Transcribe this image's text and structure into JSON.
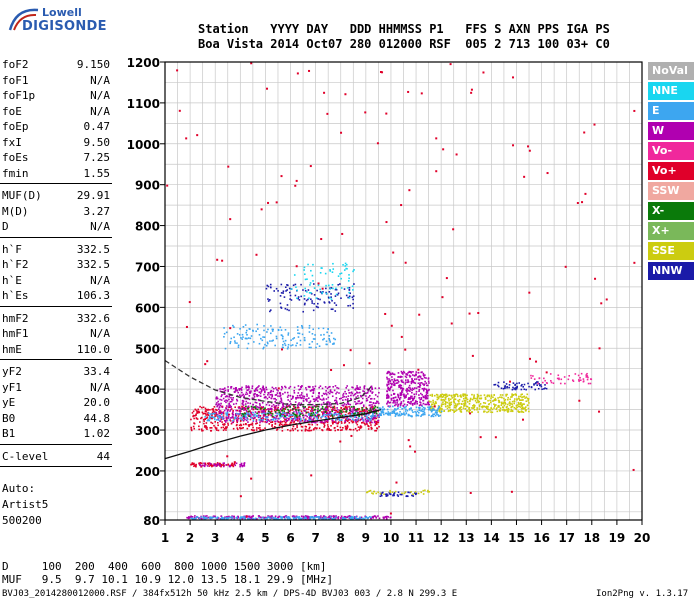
{
  "logo": {
    "line1": "Lowell",
    "line2": "DIGISONDE"
  },
  "header": {
    "row1": "Station   YYYY DAY   DDD HHMMSS P1   FFS S AXN PPS IGA PS",
    "row2": "Boa Vista 2014 Oct07 280 012000 RSF  005 2 713 100 03+ C0"
  },
  "params": [
    {
      "k": "foF2",
      "v": "9.150"
    },
    {
      "k": "foF1",
      "v": "N/A"
    },
    {
      "k": "foF1p",
      "v": "N/A"
    },
    {
      "k": "foE",
      "v": "N/A"
    },
    {
      "k": "foEp",
      "v": "0.47"
    },
    {
      "k": "fxI",
      "v": "9.50"
    },
    {
      "k": "foEs",
      "v": "7.25"
    },
    {
      "k": "fmin",
      "v": "1.55"
    },
    {
      "k": "MUF(D)",
      "v": "29.91"
    },
    {
      "k": "M(D)",
      "v": "3.27"
    },
    {
      "k": "D",
      "v": "N/A"
    },
    {
      "k": "h`F",
      "v": "332.5"
    },
    {
      "k": "h`F2",
      "v": "332.5"
    },
    {
      "k": "h`E",
      "v": "N/A"
    },
    {
      "k": "h`Es",
      "v": "106.3"
    },
    {
      "k": "hmF2",
      "v": "332.6"
    },
    {
      "k": "hmF1",
      "v": "N/A"
    },
    {
      "k": "hmE",
      "v": "110.0"
    },
    {
      "k": "yF2",
      "v": "33.4"
    },
    {
      "k": "yF1",
      "v": "N/A"
    },
    {
      "k": "yE",
      "v": "20.0"
    },
    {
      "k": "B0",
      "v": "44.8"
    },
    {
      "k": "B1",
      "v": "1.02"
    },
    {
      "k": "C-level",
      "v": "44"
    }
  ],
  "auto": {
    "line1": "Auto:",
    "line2": "Artist5",
    "line3": "500200"
  },
  "legend": [
    {
      "label": "NoVal",
      "color": "#b0b0b0"
    },
    {
      "label": "NNE",
      "color": "#19d6f0"
    },
    {
      "label": "E",
      "color": "#3da6f0"
    },
    {
      "label": "W",
      "color": "#b000b0"
    },
    {
      "label": "Vo-",
      "color": "#f0289c"
    },
    {
      "label": "Vo+",
      "color": "#e0002a"
    },
    {
      "label": "SSW",
      "color": "#f0a8a0"
    },
    {
      "label": "X-",
      "color": "#0a7a0a"
    },
    {
      "label": "X+",
      "color": "#7ab85a"
    },
    {
      "label": "SSE",
      "color": "#cccc10"
    },
    {
      "label": "NNW",
      "color": "#1a1aa8"
    }
  ],
  "footer": {
    "d_row": "D     100  200  400  600  800 1000 1500 3000 [km]",
    "muf_row": "MUF   9.5  9.7 10.1 10.9 12.0 13.5 18.1 29.9 [MHz]",
    "file_info": "BVJ03_2014280012000.RSF / 384fx512h 50 kHz 2.5 km / DPS-4D BVJ03 003 / 2.8 N 299.3 E",
    "version": "Ion2Png v. 1.3.17"
  },
  "chart_data": {
    "type": "scatter",
    "title": "",
    "xlabel": "",
    "ylabel": "",
    "xlim": [
      1,
      20
    ],
    "ylim": [
      80,
      1200
    ],
    "x_ticks": [
      1,
      2,
      3,
      4,
      5,
      6,
      7,
      8,
      9,
      10,
      11,
      12,
      13,
      14,
      15,
      16,
      17,
      18,
      19,
      20
    ],
    "y_ticks": [
      80,
      200,
      300,
      400,
      500,
      600,
      700,
      800,
      900,
      1000,
      1100,
      1200
    ],
    "grid": true,
    "legend_position": "right",
    "clusters": [
      {
        "series": "W",
        "x_range": [
          1.8,
          10
        ],
        "y_range": [
          85,
          92
        ],
        "density": 260
      },
      {
        "series": "E",
        "x_range": [
          2,
          9.2
        ],
        "y_range": [
          83,
          90
        ],
        "density": 200
      },
      {
        "series": "Vo+",
        "x_range": [
          2,
          3.8
        ],
        "y_range": [
          212,
          222
        ],
        "density": 70
      },
      {
        "series": "W",
        "x_range": [
          2.2,
          4.2
        ],
        "y_range": [
          212,
          222
        ],
        "density": 40
      },
      {
        "series": "Vo+",
        "x_range": [
          2,
          9.5
        ],
        "y_range": [
          300,
          360
        ],
        "density": 700
      },
      {
        "series": "W",
        "x_range": [
          3,
          9.5
        ],
        "y_range": [
          320,
          410
        ],
        "density": 900
      },
      {
        "series": "E",
        "x_range": [
          2.5,
          9.5
        ],
        "y_range": [
          325,
          345
        ],
        "density": 200
      },
      {
        "series": "X-",
        "x_range": [
          4,
          9.5
        ],
        "y_range": [
          335,
          360
        ],
        "density": 120
      },
      {
        "series": "W",
        "x_range": [
          9.8,
          11.5
        ],
        "y_range": [
          360,
          445
        ],
        "density": 350
      },
      {
        "series": "SSE",
        "x_range": [
          11.5,
          15.5
        ],
        "y_range": [
          345,
          390
        ],
        "density": 450
      },
      {
        "series": "E",
        "x_range": [
          9.5,
          12
        ],
        "y_range": [
          335,
          360
        ],
        "density": 150
      },
      {
        "series": "NNW",
        "x_range": [
          14,
          16.2
        ],
        "y_range": [
          400,
          420
        ],
        "density": 60
      },
      {
        "series": "Vo-",
        "x_range": [
          15.5,
          18
        ],
        "y_range": [
          415,
          440
        ],
        "density": 50
      },
      {
        "series": "E",
        "x_range": [
          3.3,
          7.8
        ],
        "y_range": [
          500,
          560
        ],
        "density": 150
      },
      {
        "series": "NNW",
        "x_range": [
          5,
          8.5
        ],
        "y_range": [
          590,
          660
        ],
        "density": 120
      },
      {
        "series": "NNE",
        "x_range": [
          6,
          8.5
        ],
        "y_range": [
          620,
          710
        ],
        "density": 70
      },
      {
        "series": "NNW",
        "x_range": [
          9.5,
          11
        ],
        "y_range": [
          140,
          150
        ],
        "density": 40
      },
      {
        "series": "SSE",
        "x_range": [
          9,
          11.5
        ],
        "y_range": [
          145,
          155
        ],
        "density": 30
      },
      {
        "series": "Vo+",
        "x_range": [
          1,
          20
        ],
        "y_range": [
          80,
          1200
        ],
        "density": 120
      }
    ],
    "trace_line": {
      "x": [
        1,
        2,
        3,
        4,
        5,
        6,
        7,
        8,
        9,
        9.6
      ],
      "y": [
        230,
        248,
        268,
        285,
        300,
        312,
        322,
        331,
        340,
        350
      ]
    },
    "profile_line": {
      "x": [
        1,
        2,
        3,
        4,
        5,
        6,
        7,
        8,
        8.8,
        9.2
      ],
      "y": [
        470,
        430,
        398,
        380,
        370,
        362,
        362,
        365,
        380,
        405
      ]
    }
  }
}
